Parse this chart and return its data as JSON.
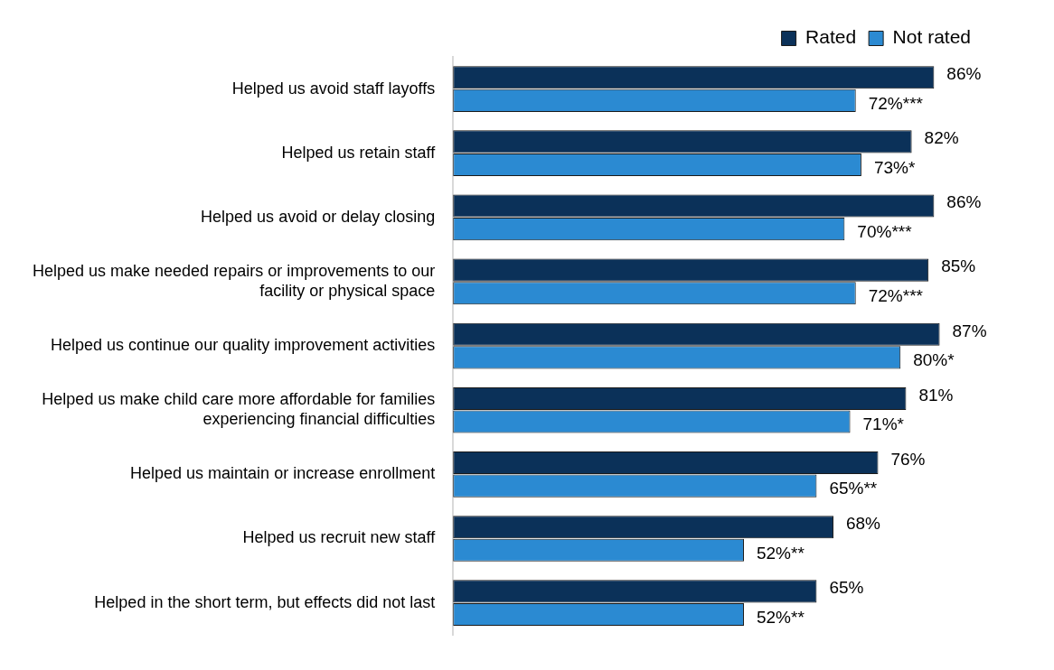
{
  "chart_data": {
    "type": "bar",
    "orientation": "horizontal",
    "legend": "top",
    "categories": [
      "Helped us avoid staff layoffs",
      "Helped us retain staff",
      "Helped us avoid or delay closing",
      "Helped us make needed repairs or improvements to our facility or physical space",
      "Helped us continue our quality improvement activities",
      "Helped us make child care more affordable for families experiencing financial difficulties",
      "Helped us maintain or increase enrollment",
      "Helped us recruit new staff",
      "Helped in the short term, but effects did not last"
    ],
    "series": [
      {
        "name": "Rated",
        "color": "#0b3159",
        "values": [
          86,
          82,
          86,
          85,
          87,
          81,
          76,
          68,
          65
        ],
        "value_labels": [
          "86%",
          "82%",
          "86%",
          "85%",
          "87%",
          "81%",
          "76%",
          "68%",
          "65%"
        ]
      },
      {
        "name": "Not rated",
        "color": "#2b8ad2",
        "values": [
          72,
          73,
          70,
          72,
          80,
          71,
          65,
          52,
          52
        ],
        "value_labels": [
          "72%***",
          "73%*",
          "70%***",
          "72%***",
          "80%*",
          "71%*",
          "65%**",
          "52%**",
          "52%**"
        ]
      }
    ]
  }
}
